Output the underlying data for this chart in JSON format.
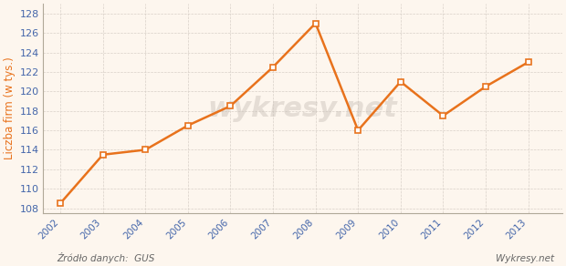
{
  "years": [
    2002,
    2003,
    2004,
    2005,
    2006,
    2007,
    2008,
    2009,
    2010,
    2011,
    2012,
    2013
  ],
  "values": [
    108.5,
    113.5,
    114.0,
    116.5,
    118.5,
    122.5,
    127.0,
    116.0,
    121.0,
    117.5,
    120.5,
    123.0
  ],
  "line_color": "#e8721c",
  "marker_style": "s",
  "marker_facecolor": "#ffffff",
  "marker_edgecolor": "#e8721c",
  "marker_size": 4,
  "ylabel": "Liczba firm (w tys.)",
  "ylim": [
    107.5,
    129.0
  ],
  "yticks": [
    108,
    110,
    112,
    114,
    116,
    118,
    120,
    122,
    124,
    126,
    128
  ],
  "xlim": [
    2001.6,
    2013.8
  ],
  "bg_color": "#fdf6ee",
  "plot_bg_color": "#fdf6ee",
  "grid_color": "#d8d0c8",
  "source_text": "Źródło danych:  GUS",
  "watermark_text": "wykresy.net",
  "source_fontsize": 7.5,
  "axis_label_color": "#e8721c",
  "tick_color": "#4466aa",
  "spine_color": "#b0a898"
}
